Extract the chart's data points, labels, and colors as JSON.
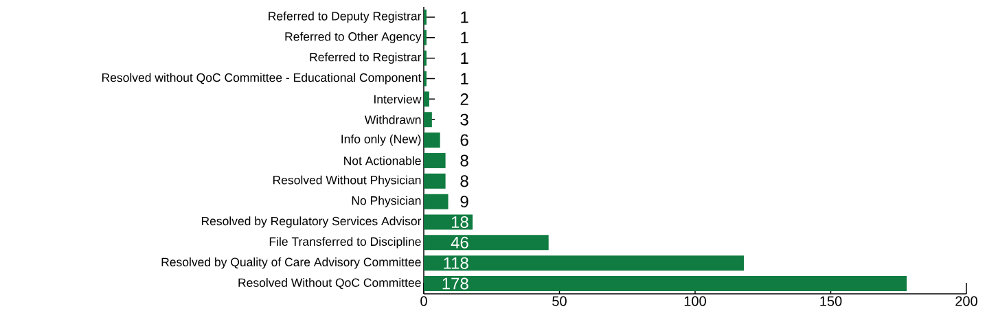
{
  "chart_data": {
    "type": "bar",
    "orientation": "horizontal",
    "categories": [
      "Referred to Deputy Registrar",
      "Referred to Other Agency",
      "Referred to Registrar",
      "Resolved without QoC Committee - Educational Component",
      "Interview",
      "Withdrawn",
      "Info only (New)",
      "Not Actionable",
      "Resolved Without Physician",
      "No Physician",
      "Resolved by Regulatory Services Advisor",
      "File Transferred to Discipline",
      "Resolved by Quality of Care Advisory Committee",
      "Resolved Without QoC Committee"
    ],
    "values": [
      1,
      1,
      1,
      1,
      2,
      3,
      6,
      8,
      8,
      9,
      18,
      46,
      118,
      178
    ],
    "color": "#107c41",
    "xlim": [
      0,
      200
    ],
    "xticks": [
      0,
      50,
      100,
      150,
      200
    ],
    "data_labels": true
  }
}
